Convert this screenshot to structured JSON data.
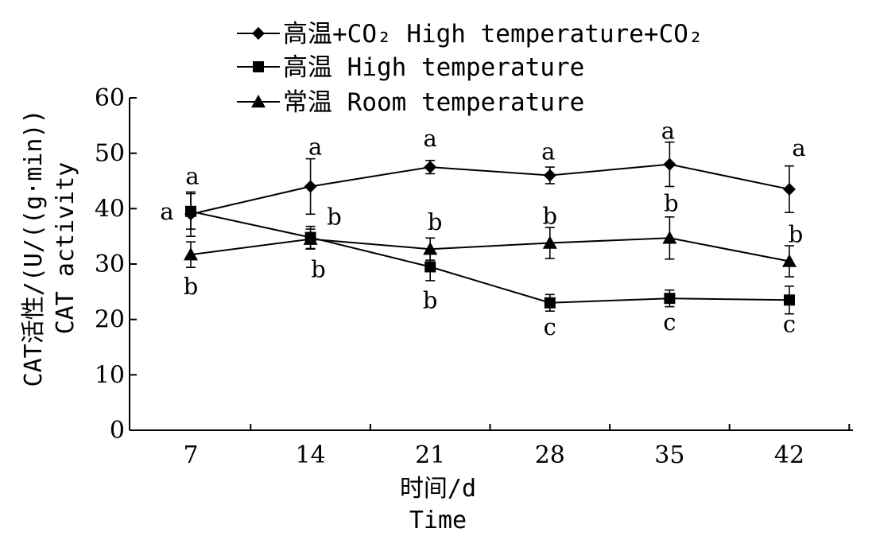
{
  "chart_data": {
    "type": "line",
    "x": [
      7,
      14,
      21,
      28,
      35,
      42
    ],
    "xlabel_lines": [
      "时间/d",
      "Time"
    ],
    "ylabel_lines": [
      "CAT活性/(U/((g·min))",
      "CAT activity"
    ],
    "ylim": [
      0,
      60
    ],
    "yticks": [
      0,
      10,
      20,
      30,
      40,
      50,
      60
    ],
    "grid": false,
    "legend_position": "top",
    "series": [
      {
        "name": "高温+CO₂ High temperature+CO₂",
        "marker": "diamond",
        "values": [
          39,
          44,
          47.5,
          46,
          48,
          43.5
        ],
        "errors": [
          4,
          5,
          1.2,
          1.5,
          4,
          4.2
        ],
        "letters": [
          "a",
          "a",
          "a",
          "a",
          "a",
          "a"
        ]
      },
      {
        "name": "高温 High temperature",
        "marker": "square",
        "values": [
          39.5,
          34.8,
          29.5,
          23,
          23.8,
          23.5
        ],
        "errors": [
          3.2,
          2,
          2.5,
          1.5,
          1.5,
          2.5
        ],
        "letters": [
          "a",
          "b",
          "b",
          "c",
          "c",
          "c"
        ]
      },
      {
        "name": "常温 Room temperature",
        "marker": "triangle",
        "values": [
          31.7,
          34.5,
          32.7,
          33.8,
          34.7,
          30.5
        ],
        "errors": [
          2.3,
          1.8,
          2,
          2.8,
          3.8,
          2.8
        ],
        "letters": [
          "b",
          "b",
          "b",
          "b",
          "b",
          "b"
        ]
      }
    ]
  }
}
